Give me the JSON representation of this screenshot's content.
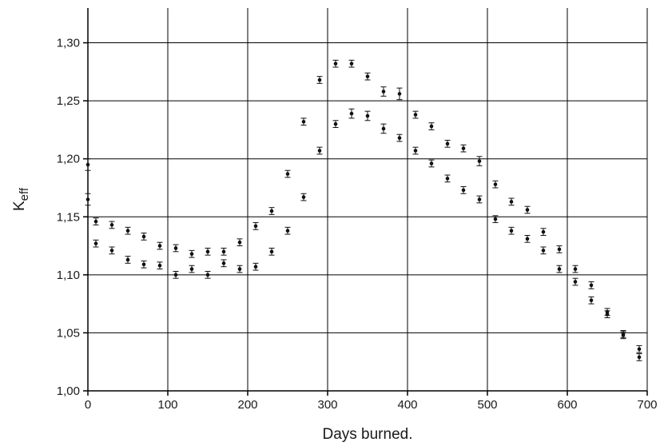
{
  "chart_data": {
    "type": "scatter",
    "title": "",
    "xlabel": "Days burned.",
    "ylabel_main": "K",
    "ylabel_sub": "eff",
    "xlim": [
      0,
      700
    ],
    "ylim": [
      1.0,
      1.33
    ],
    "xticks": [
      0,
      100,
      200,
      300,
      400,
      500,
      600,
      700
    ],
    "xtick_labels": [
      "0",
      "100",
      "200",
      "300",
      "400",
      "500",
      "600",
      "700"
    ],
    "yticks": [
      1.0,
      1.05,
      1.1,
      1.15,
      1.2,
      1.25,
      1.3
    ],
    "ytick_labels": [
      "1,00",
      "1,05",
      "1,10",
      "1,15",
      "1,20",
      "1,25",
      "1,30"
    ],
    "grid": true,
    "marker_color": "#111111",
    "series": [
      {
        "points": [
          {
            "x": 0,
            "y": 1.195,
            "err": 0.005
          },
          {
            "x": 10,
            "y": 1.146,
            "err": 0.003
          },
          {
            "x": 30,
            "y": 1.143,
            "err": 0.003
          },
          {
            "x": 50,
            "y": 1.138,
            "err": 0.003
          },
          {
            "x": 70,
            "y": 1.133,
            "err": 0.003
          },
          {
            "x": 90,
            "y": 1.125,
            "err": 0.003
          },
          {
            "x": 110,
            "y": 1.123,
            "err": 0.003
          },
          {
            "x": 130,
            "y": 1.118,
            "err": 0.003
          },
          {
            "x": 150,
            "y": 1.12,
            "err": 0.003
          },
          {
            "x": 170,
            "y": 1.12,
            "err": 0.003
          },
          {
            "x": 190,
            "y": 1.128,
            "err": 0.003
          },
          {
            "x": 210,
            "y": 1.142,
            "err": 0.003
          },
          {
            "x": 230,
            "y": 1.155,
            "err": 0.003
          },
          {
            "x": 250,
            "y": 1.187,
            "err": 0.003
          },
          {
            "x": 270,
            "y": 1.232,
            "err": 0.003
          },
          {
            "x": 290,
            "y": 1.268,
            "err": 0.003
          },
          {
            "x": 310,
            "y": 1.282,
            "err": 0.003
          },
          {
            "x": 330,
            "y": 1.282,
            "err": 0.003
          },
          {
            "x": 350,
            "y": 1.271,
            "err": 0.003
          },
          {
            "x": 370,
            "y": 1.258,
            "err": 0.004
          },
          {
            "x": 390,
            "y": 1.256,
            "err": 0.005
          },
          {
            "x": 410,
            "y": 1.238,
            "err": 0.003
          },
          {
            "x": 430,
            "y": 1.228,
            "err": 0.003
          },
          {
            "x": 450,
            "y": 1.213,
            "err": 0.003
          },
          {
            "x": 470,
            "y": 1.209,
            "err": 0.003
          },
          {
            "x": 490,
            "y": 1.198,
            "err": 0.004
          },
          {
            "x": 510,
            "y": 1.178,
            "err": 0.003
          },
          {
            "x": 530,
            "y": 1.163,
            "err": 0.003
          },
          {
            "x": 550,
            "y": 1.156,
            "err": 0.003
          },
          {
            "x": 570,
            "y": 1.137,
            "err": 0.003
          },
          {
            "x": 590,
            "y": 1.122,
            "err": 0.003
          },
          {
            "x": 610,
            "y": 1.105,
            "err": 0.003
          },
          {
            "x": 630,
            "y": 1.091,
            "err": 0.003
          },
          {
            "x": 650,
            "y": 1.068,
            "err": 0.003
          },
          {
            "x": 670,
            "y": 1.049,
            "err": 0.003
          },
          {
            "x": 690,
            "y": 1.036,
            "err": 0.003
          }
        ]
      },
      {
        "points": [
          {
            "x": 0,
            "y": 1.165,
            "err": 0.005
          },
          {
            "x": 10,
            "y": 1.127,
            "err": 0.003
          },
          {
            "x": 30,
            "y": 1.121,
            "err": 0.003
          },
          {
            "x": 50,
            "y": 1.113,
            "err": 0.003
          },
          {
            "x": 70,
            "y": 1.109,
            "err": 0.003
          },
          {
            "x": 90,
            "y": 1.108,
            "err": 0.003
          },
          {
            "x": 110,
            "y": 1.1,
            "err": 0.003
          },
          {
            "x": 130,
            "y": 1.105,
            "err": 0.003
          },
          {
            "x": 150,
            "y": 1.1,
            "err": 0.003
          },
          {
            "x": 170,
            "y": 1.11,
            "err": 0.003
          },
          {
            "x": 190,
            "y": 1.105,
            "err": 0.003
          },
          {
            "x": 210,
            "y": 1.107,
            "err": 0.003
          },
          {
            "x": 230,
            "y": 1.12,
            "err": 0.003
          },
          {
            "x": 250,
            "y": 1.138,
            "err": 0.003
          },
          {
            "x": 270,
            "y": 1.167,
            "err": 0.003
          },
          {
            "x": 290,
            "y": 1.207,
            "err": 0.003
          },
          {
            "x": 310,
            "y": 1.23,
            "err": 0.003
          },
          {
            "x": 330,
            "y": 1.239,
            "err": 0.004
          },
          {
            "x": 350,
            "y": 1.237,
            "err": 0.004
          },
          {
            "x": 370,
            "y": 1.226,
            "err": 0.004
          },
          {
            "x": 390,
            "y": 1.218,
            "err": 0.003
          },
          {
            "x": 410,
            "y": 1.207,
            "err": 0.003
          },
          {
            "x": 430,
            "y": 1.196,
            "err": 0.003
          },
          {
            "x": 450,
            "y": 1.183,
            "err": 0.003
          },
          {
            "x": 470,
            "y": 1.173,
            "err": 0.003
          },
          {
            "x": 490,
            "y": 1.165,
            "err": 0.003
          },
          {
            "x": 510,
            "y": 1.148,
            "err": 0.003
          },
          {
            "x": 530,
            "y": 1.138,
            "err": 0.003
          },
          {
            "x": 550,
            "y": 1.131,
            "err": 0.003
          },
          {
            "x": 570,
            "y": 1.121,
            "err": 0.003
          },
          {
            "x": 590,
            "y": 1.105,
            "err": 0.003
          },
          {
            "x": 610,
            "y": 1.094,
            "err": 0.003
          },
          {
            "x": 630,
            "y": 1.078,
            "err": 0.003
          },
          {
            "x": 650,
            "y": 1.066,
            "err": 0.003
          },
          {
            "x": 670,
            "y": 1.048,
            "err": 0.003
          },
          {
            "x": 690,
            "y": 1.029,
            "err": 0.003
          }
        ]
      }
    ]
  }
}
